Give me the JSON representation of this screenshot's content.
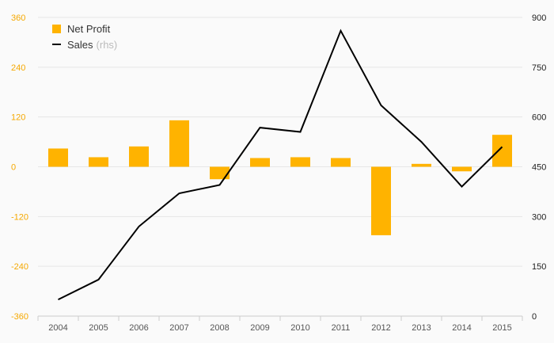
{
  "chart_data": {
    "type": "bar",
    "categories": [
      "2004",
      "2005",
      "2006",
      "2007",
      "2008",
      "2009",
      "2010",
      "2011",
      "2012",
      "2013",
      "2014",
      "2015"
    ],
    "series": [
      {
        "name": "Net Profit",
        "type": "bar",
        "axis": "left",
        "color": "#ffb300",
        "values": [
          44,
          23,
          49,
          112,
          -30,
          21,
          23,
          21,
          -165,
          7,
          -11,
          77
        ]
      },
      {
        "name": "Sales",
        "type": "line",
        "axis": "right",
        "color": "#000000",
        "values": [
          50,
          110,
          270,
          370,
          395,
          568,
          555,
          860,
          635,
          525,
          390,
          510
        ]
      }
    ],
    "y_left": {
      "ticks": [
        "360",
        "240",
        "120",
        "0",
        "-120",
        "-240",
        "-360"
      ],
      "range": [
        -360,
        360
      ],
      "color": "#f5a800"
    },
    "y_right": {
      "ticks": [
        "900",
        "750",
        "600",
        "450",
        "300",
        "150",
        "0"
      ],
      "range": [
        0,
        900
      ]
    },
    "legend": {
      "position": "top-left",
      "items": [
        {
          "label": "Net Profit",
          "note": ""
        },
        {
          "label": "Sales",
          "note": "(rhs)"
        }
      ]
    },
    "grid": true
  }
}
